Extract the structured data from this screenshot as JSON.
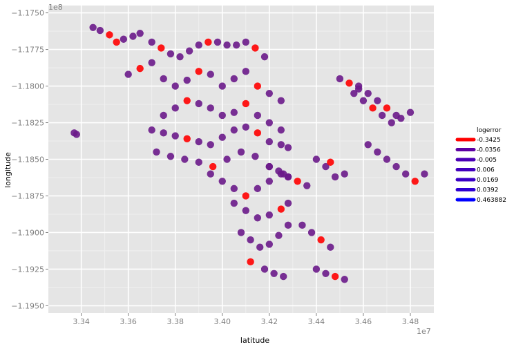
{
  "chart_data": {
    "type": "scatter",
    "title": "",
    "xlabel": "latitude",
    "ylabel": "longitude",
    "x_multiplier_label": "1e7",
    "y_multiplier_label": "1e8",
    "xlim": [
      33.26,
      34.9
    ],
    "ylim": [
      -119.55,
      -117.45
    ],
    "x_ticks": [
      33.4,
      33.6,
      33.8,
      34.0,
      34.2,
      34.4,
      34.6,
      34.8
    ],
    "x_tick_labels": [
      "3.34",
      "3.36",
      "3.38",
      "3.40",
      "3.42",
      "3.44",
      "3.46",
      "3.48"
    ],
    "y_ticks": [
      -117.5,
      -117.75,
      -118.0,
      -118.25,
      -118.5,
      -118.75,
      -119.0,
      -119.25,
      -119.5
    ],
    "y_tick_labels": [
      "−1.1750",
      "−1.1775",
      "−1.1800",
      "−1.1825",
      "−1.1850",
      "−1.1875",
      "−1.1900",
      "−1.1925",
      "−1.1950"
    ],
    "grid": true,
    "legend": {
      "title": "logerror",
      "position": "right",
      "entries": [
        {
          "label": "-0.3425",
          "color": "#ff0000"
        },
        {
          "label": "-0.0356",
          "color": "#5c00a3"
        },
        {
          "label": "-0.005",
          "color": "#4a00b5"
        },
        {
          "label": "0.006",
          "color": "#4200bd"
        },
        {
          "label": "0.0169",
          "color": "#3a00c5"
        },
        {
          "label": "0.0392",
          "color": "#2e00d1"
        },
        {
          "label": "0.463882",
          "color": "#0000ff"
        }
      ]
    },
    "colors": {
      "panel": "#e5e5e5",
      "grid_major": "#ffffff",
      "grid_minor": "#f2f2f2",
      "point_base": "#6a1a8a",
      "point_red": "#ff0000",
      "point_blue": "#1010ff"
    },
    "series": [
      {
        "note_points": "representative sample of plotted points (latitude, longitude)",
        "x": [
          33.45,
          33.48,
          33.52,
          33.55,
          33.58,
          33.62,
          33.65,
          33.7,
          33.74,
          33.78,
          33.82,
          33.86,
          33.9,
          33.94,
          33.98,
          34.02,
          34.06,
          34.1,
          34.14,
          34.18,
          33.6,
          33.65,
          33.7,
          33.75,
          33.8,
          33.85,
          33.9,
          33.95,
          34.0,
          34.05,
          34.1,
          34.15,
          34.2,
          34.25,
          33.75,
          33.8,
          33.85,
          33.9,
          33.95,
          34.0,
          34.05,
          34.1,
          34.15,
          34.2,
          34.25,
          33.7,
          33.75,
          33.8,
          33.85,
          33.9,
          33.95,
          34.0,
          34.05,
          34.1,
          34.15,
          34.2,
          34.25,
          34.28,
          33.72,
          33.78,
          33.84,
          33.9,
          33.96,
          34.02,
          34.08,
          34.14,
          34.2,
          34.26,
          33.95,
          34.0,
          34.05,
          34.1,
          34.15,
          34.2,
          34.25,
          34.28,
          34.05,
          34.1,
          34.15,
          34.2,
          34.25,
          34.28,
          34.08,
          34.12,
          34.16,
          34.2,
          34.24,
          34.28,
          34.12,
          34.18,
          34.22,
          34.26,
          34.2,
          34.24,
          34.28,
          34.32,
          34.36,
          34.4,
          34.44,
          34.48,
          34.52,
          34.46,
          34.56,
          34.6,
          34.64,
          34.68,
          34.72,
          34.76,
          34.8,
          34.58,
          34.62,
          34.66,
          34.7,
          34.74,
          34.5,
          34.54,
          34.58,
          34.62,
          34.66,
          34.7,
          34.74,
          34.78,
          34.82,
          34.86,
          33.37,
          33.38,
          34.34,
          34.38,
          34.42,
          34.46,
          34.4,
          34.44,
          34.48,
          34.52
        ],
        "y": [
          -117.6,
          -117.62,
          -117.65,
          -117.7,
          -117.68,
          -117.66,
          -117.64,
          -117.7,
          -117.74,
          -117.78,
          -117.8,
          -117.76,
          -117.72,
          -117.7,
          -117.7,
          -117.72,
          -117.72,
          -117.7,
          -117.74,
          -117.8,
          -117.92,
          -117.88,
          -117.84,
          -117.95,
          -118.0,
          -117.96,
          -117.9,
          -117.92,
          -118.0,
          -117.95,
          -117.9,
          -118.0,
          -118.05,
          -118.1,
          -118.2,
          -118.15,
          -118.1,
          -118.12,
          -118.15,
          -118.2,
          -118.18,
          -118.12,
          -118.2,
          -118.25,
          -118.3,
          -118.3,
          -118.32,
          -118.34,
          -118.36,
          -118.38,
          -118.4,
          -118.35,
          -118.3,
          -118.28,
          -118.32,
          -118.38,
          -118.4,
          -118.42,
          -118.45,
          -118.48,
          -118.5,
          -118.52,
          -118.55,
          -118.5,
          -118.45,
          -118.48,
          -118.55,
          -118.6,
          -118.6,
          -118.65,
          -118.7,
          -118.75,
          -118.7,
          -118.65,
          -118.6,
          -118.62,
          -118.8,
          -118.85,
          -118.9,
          -118.88,
          -118.84,
          -118.8,
          -119.0,
          -119.05,
          -119.1,
          -119.08,
          -119.02,
          -118.95,
          -119.2,
          -119.25,
          -119.28,
          -119.3,
          -118.55,
          -118.58,
          -118.62,
          -118.65,
          -118.68,
          -118.5,
          -118.55,
          -118.62,
          -118.6,
          -118.52,
          -118.05,
          -118.1,
          -118.15,
          -118.2,
          -118.25,
          -118.22,
          -118.18,
          -118.0,
          -118.05,
          -118.1,
          -118.15,
          -118.2,
          -117.95,
          -117.98,
          -118.02,
          -118.4,
          -118.45,
          -118.5,
          -118.55,
          -118.6,
          -118.65,
          -118.6,
          -118.32,
          -118.33,
          -118.95,
          -119.0,
          -119.05,
          -119.1,
          -119.25,
          -119.28,
          -119.3,
          -119.32
        ],
        "c": [
          0,
          0,
          1,
          1,
          0,
          0,
          0,
          0,
          1,
          0,
          0,
          0,
          0,
          1,
          0,
          0,
          0,
          0,
          1,
          0,
          0,
          1,
          0,
          0,
          0,
          0,
          1,
          0,
          0,
          0,
          0,
          1,
          0,
          0,
          0,
          0,
          1,
          0,
          0,
          0,
          0,
          1,
          0,
          0,
          0,
          0,
          0,
          0,
          1,
          0,
          0,
          0,
          0,
          0,
          1,
          0,
          0,
          0,
          0,
          0,
          0,
          0,
          1,
          0,
          0,
          0,
          0,
          0,
          0,
          0,
          0,
          1,
          0,
          0,
          0,
          0,
          0,
          0,
          0,
          0,
          1,
          0,
          0,
          0,
          0,
          0,
          0,
          0,
          1,
          0,
          0,
          0,
          0,
          0,
          0,
          1,
          0,
          0,
          0,
          0,
          0,
          1,
          0,
          0,
          1,
          0,
          0,
          0,
          0,
          0,
          0,
          0,
          1,
          0,
          0,
          1,
          0,
          0,
          0,
          0,
          0,
          0,
          1,
          0,
          0,
          0,
          0,
          0,
          1,
          0,
          0,
          0,
          1,
          0
        ]
      }
    ]
  }
}
